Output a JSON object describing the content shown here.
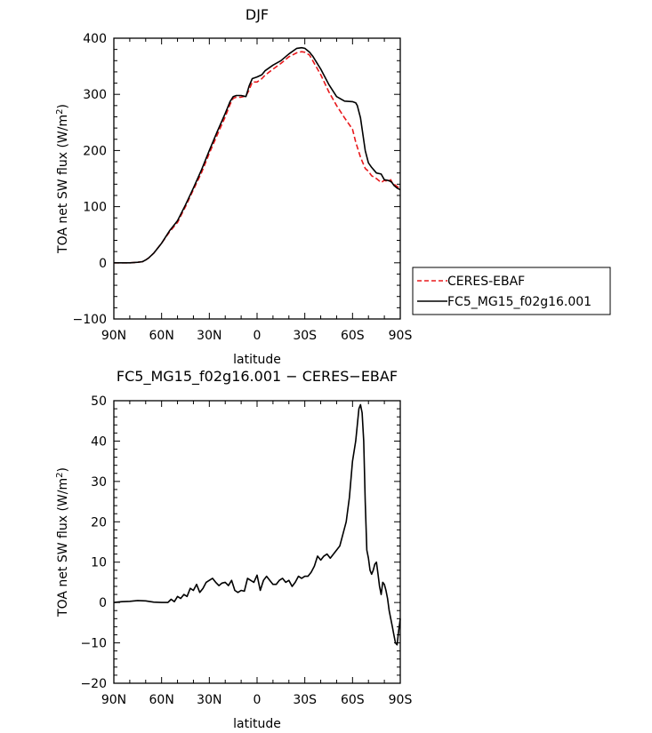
{
  "chart_data": [
    {
      "type": "line",
      "title": "DJF",
      "xlabel": "latitude",
      "ylabel_main": "TOA net SW flux (W/m",
      "ylabel_sup": "2",
      "ylabel_close": ")",
      "xlim": [
        90,
        -90
      ],
      "ylim": [
        -100,
        400
      ],
      "x_ticks": [
        90,
        60,
        30,
        0,
        -30,
        -60,
        -90
      ],
      "x_tick_labels": [
        "90N",
        "60N",
        "30N",
        "0",
        "30S",
        "60S",
        "90S"
      ],
      "y_ticks": [
        -100,
        0,
        100,
        200,
        300,
        400
      ],
      "y_tick_labels": [
        "−100",
        "0",
        "100",
        "200",
        "300",
        "400"
      ],
      "legend_position": "right",
      "series": [
        {
          "name": "CERES-EBAF",
          "color": "#e8191c",
          "dash": "dashed",
          "x": [
            90,
            80,
            75,
            72,
            70,
            68,
            65,
            60,
            55,
            50,
            45,
            40,
            35,
            30,
            25,
            20,
            17,
            15,
            13,
            10,
            7,
            5,
            3,
            0,
            -3,
            -5,
            -10,
            -15,
            -20,
            -25,
            -28,
            -30,
            -33,
            -35,
            -40,
            -45,
            -50,
            -55,
            -60,
            -62,
            -65,
            -68,
            -70,
            -72,
            -75,
            -78,
            -80,
            -82,
            -84,
            -85,
            -86,
            -88,
            -90
          ],
          "y": [
            0,
            0,
            1,
            2,
            5,
            9,
            17,
            35,
            55,
            72,
            100,
            130,
            160,
            195,
            228,
            260,
            282,
            293,
            295,
            295,
            297,
            308,
            322,
            322,
            328,
            334,
            345,
            355,
            367,
            374,
            376,
            375,
            370,
            360,
            335,
            305,
            280,
            258,
            238,
            215,
            188,
            168,
            163,
            155,
            150,
            143,
            147,
            145,
            148,
            142,
            140,
            136,
            132
          ]
        },
        {
          "name": "FC5_MG15_f02g16.001",
          "color": "#000000",
          "dash": "solid",
          "x": [
            90,
            80,
            75,
            72,
            70,
            68,
            65,
            60,
            55,
            50,
            45,
            40,
            35,
            30,
            25,
            20,
            17,
            15,
            13,
            10,
            7,
            5,
            3,
            0,
            -3,
            -5,
            -10,
            -15,
            -20,
            -25,
            -28,
            -30,
            -33,
            -35,
            -40,
            -45,
            -50,
            -55,
            -60,
            -62,
            -63,
            -65,
            -68,
            -70,
            -72,
            -75,
            -78,
            -80,
            -82,
            -84,
            -85,
            -86,
            -88,
            -90
          ],
          "y": [
            0,
            0,
            1,
            2,
            5,
            9,
            17,
            35,
            57,
            75,
            103,
            133,
            165,
            200,
            234,
            266,
            287,
            296,
            298,
            298,
            296,
            315,
            328,
            331,
            335,
            342,
            352,
            360,
            372,
            382,
            383,
            382,
            375,
            368,
            345,
            318,
            296,
            288,
            287,
            285,
            280,
            258,
            200,
            178,
            170,
            160,
            158,
            148,
            147,
            145,
            142,
            138,
            133,
            130
          ]
        }
      ]
    },
    {
      "type": "line",
      "title": "FC5_MG15_f02g16.001 − CERES−EBAF",
      "xlabel": "latitude",
      "ylabel_main": "TOA net SW flux (W/m",
      "ylabel_sup": "2",
      "ylabel_close": ")",
      "xlim": [
        90,
        -90
      ],
      "ylim": [
        -20,
        50
      ],
      "x_ticks": [
        90,
        60,
        30,
        0,
        -30,
        -60,
        -90
      ],
      "x_tick_labels": [
        "90N",
        "60N",
        "30N",
        "0",
        "30S",
        "60S",
        "90S"
      ],
      "y_ticks": [
        -20,
        -10,
        0,
        10,
        20,
        30,
        40,
        50
      ],
      "y_tick_labels": [
        "−20",
        "−10",
        "0",
        "10",
        "20",
        "30",
        "40",
        "50"
      ],
      "series": [
        {
          "name": "",
          "color": "#000000",
          "dash": "solid",
          "x": [
            90,
            85,
            80,
            75,
            70,
            65,
            60,
            56,
            54,
            52,
            50,
            48,
            46,
            44,
            42,
            40,
            38,
            36,
            34,
            32,
            30,
            28,
            26,
            24,
            22,
            20,
            18,
            16,
            14,
            12,
            10,
            8,
            6,
            4,
            2,
            0,
            -2,
            -4,
            -6,
            -8,
            -10,
            -12,
            -14,
            -16,
            -18,
            -20,
            -22,
            -24,
            -26,
            -28,
            -30,
            -32,
            -34,
            -36,
            -38,
            -40,
            -42,
            -44,
            -46,
            -48,
            -50,
            -52,
            -54,
            -56,
            -58,
            -60,
            -62,
            -63,
            -64,
            -65,
            -66,
            -67,
            -68,
            -69,
            -70,
            -71,
            -72,
            -73,
            -74,
            -75,
            -76,
            -77,
            -78,
            -79,
            -80,
            -81,
            -82,
            -83,
            -84,
            -85,
            -86,
            -87,
            -88,
            -89,
            -90
          ],
          "y": [
            0,
            0.2,
            0.3,
            0.5,
            0.4,
            0.1,
            0,
            0,
            0.8,
            0.2,
            1.5,
            1.0,
            2.0,
            1.5,
            3.5,
            3.0,
            4.5,
            2.5,
            3.5,
            5.0,
            5.5,
            6.0,
            5.0,
            4.2,
            4.8,
            5.0,
            4.2,
            5.5,
            3.0,
            2.5,
            3.0,
            2.8,
            6.0,
            5.5,
            5.0,
            6.8,
            3.0,
            5.5,
            6.5,
            5.5,
            4.5,
            4.5,
            5.5,
            6.0,
            5.0,
            5.5,
            4.0,
            5.0,
            6.5,
            6.0,
            6.5,
            6.5,
            7.5,
            9.0,
            11.5,
            10.5,
            11.5,
            12.0,
            11.0,
            12.0,
            13.0,
            14.0,
            17.0,
            20.0,
            26.0,
            35.0,
            40.0,
            44.0,
            48.0,
            49.0,
            47.0,
            40.0,
            25.0,
            13.0,
            11.0,
            8.0,
            7.0,
            8.0,
            9.5,
            10.0,
            7.0,
            4.0,
            2.0,
            5.0,
            4.5,
            3.0,
            1.0,
            -2.0,
            -4.0,
            -6.0,
            -8.0,
            -10.0,
            -10.5,
            -7.0,
            -4.0
          ]
        }
      ]
    }
  ]
}
